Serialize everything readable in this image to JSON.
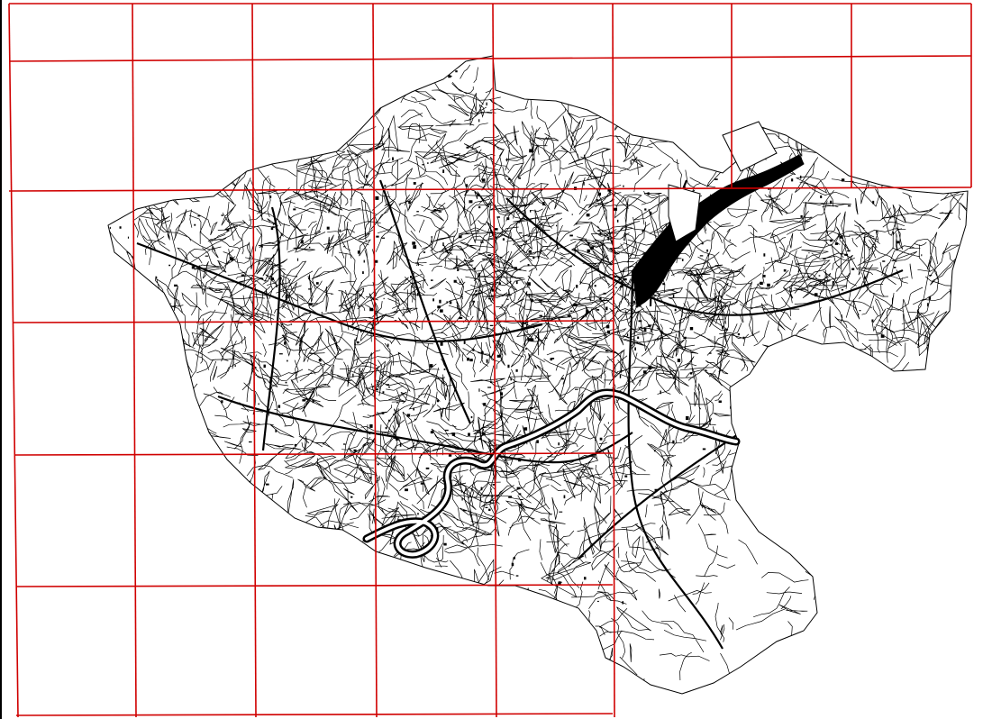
{
  "map": {
    "grid_color": "#d00000",
    "linework_color": "#000000",
    "background_color": "#ffffff",
    "rows": 6,
    "cols_top": 8,
    "features": [
      "tile-grid",
      "parcel-linework",
      "river",
      "harbor"
    ]
  }
}
